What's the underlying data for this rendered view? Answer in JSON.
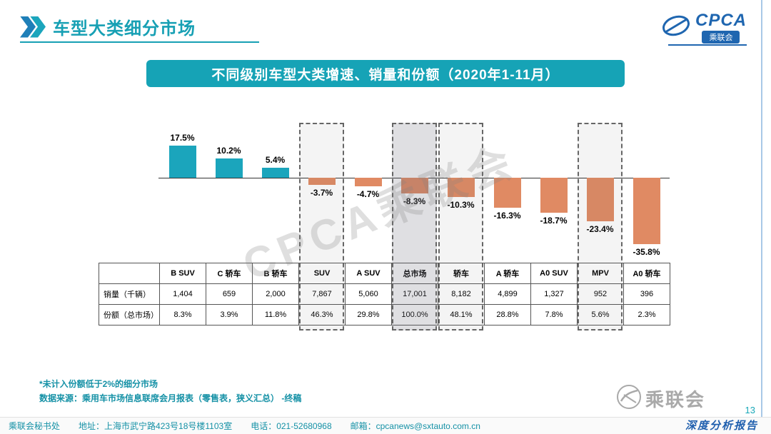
{
  "header": {
    "title": "车型大类细分市场"
  },
  "logo": {
    "cpca": "CPCA",
    "cpca_sub": "乘联会",
    "gray_text": "乘联会"
  },
  "banner": {
    "text": "不同级别车型大类增速、销量和份额（2020年1-11月）"
  },
  "chart_data": {
    "type": "bar",
    "title": "不同级别车型大类增速、销量和份额（2020年1-11月）",
    "categories": [
      "B SUV",
      "C 轿车",
      "B 轿车",
      "SUV",
      "A SUV",
      "总市场",
      "轿车",
      "A 轿车",
      "A0 SUV",
      "MPV",
      "A0 轿车"
    ],
    "values": [
      17.5,
      10.2,
      5.4,
      -3.7,
      -4.7,
      -8.3,
      -10.3,
      -16.3,
      -18.7,
      -23.4,
      -35.8
    ],
    "value_labels": [
      "17.5%",
      "10.2%",
      "5.4%",
      "-3.7%",
      "-4.7%",
      "-8.3%",
      "-10.3%",
      "-16.3%",
      "-18.7%",
      "-23.4%",
      "-35.8%"
    ],
    "positive_color": "#1ba5bc",
    "negative_color": "#e08a63",
    "highlighted": [
      "SUV",
      "总市场",
      "轿车",
      "MPV"
    ],
    "highlight_filled": "总市场",
    "ylim": [
      -40,
      20
    ],
    "grid": false,
    "legend": "none",
    "table": {
      "row_labels": [
        "销量（千辆）",
        "份额（总市场）"
      ],
      "rows": [
        [
          "1,404",
          "659",
          "2,000",
          "7,867",
          "5,060",
          "17,001",
          "8,182",
          "4,899",
          "1,327",
          "952",
          "396"
        ],
        [
          "8.3%",
          "3.9%",
          "11.8%",
          "46.3%",
          "29.8%",
          "100.0%",
          "48.1%",
          "28.8%",
          "7.8%",
          "5.6%",
          "2.3%"
        ]
      ]
    }
  },
  "watermark": "CPCA乘联会",
  "footnotes": [
    "*未计入份额低于2%的细分市场",
    "数据来源：乘用车市场信息联席会月报表（零售表，狭义汇总）  -终稿"
  ],
  "footer": {
    "org": "乘联会秘书处",
    "address": "地址：上海市武宁路423号18号楼1103室",
    "phone": "电话：021-52680968",
    "email": "邮箱：cpcanews@sxtauto.com.cn"
  },
  "page": {
    "page_number": "13",
    "side_label": "深度分析报告"
  }
}
